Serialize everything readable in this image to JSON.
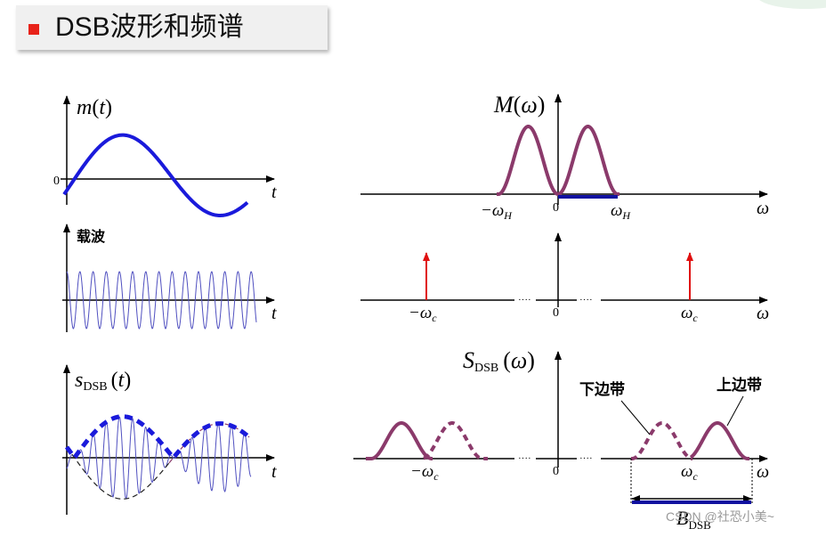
{
  "header": {
    "title": "DSB波形和频谱"
  },
  "time_domain": {
    "message": {
      "ylabel_func": "m",
      "ylabel_arg": "t",
      "zero": "0",
      "xlabel": "t"
    },
    "carrier": {
      "ylabel": "载波",
      "xlabel": "t"
    },
    "dsb": {
      "ylabel_func": "s",
      "ylabel_sub": "DSB",
      "ylabel_arg": "t",
      "xlabel": "t"
    }
  },
  "freq_domain": {
    "message": {
      "ylabel_func": "M",
      "ylabel_arg": "ω",
      "neg_wh": "−ω",
      "neg_wh_sub": "H",
      "zero": "0",
      "pos_wh": "ω",
      "pos_wh_sub": "H",
      "xlabel": "ω"
    },
    "carrier": {
      "neg_wc": "−ω",
      "neg_wc_sub": "c",
      "zero": "0",
      "pos_wc": "ω",
      "pos_wc_sub": "c",
      "xlabel": "ω",
      "dots": "····"
    },
    "dsb": {
      "ylabel_func": "S",
      "ylabel_sub": "DSB",
      "ylabel_arg": "ω",
      "lower_sideband": "下边带",
      "upper_sideband": "上边带",
      "neg_wc": "−ω",
      "neg_wc_sub": "c",
      "zero": "0",
      "pos_wc": "ω",
      "pos_wc_sub": "c",
      "xlabel": "ω",
      "bandwidth": "B",
      "bandwidth_sub": "DSB",
      "dots": "····"
    }
  },
  "watermark": "CSDN @社恐小美~",
  "colors": {
    "accent": "#e8231a",
    "signal": "#1a1adb",
    "spectrum": "#8b3a6b",
    "carrier": "#5050c0",
    "impulse": "#e01010"
  }
}
